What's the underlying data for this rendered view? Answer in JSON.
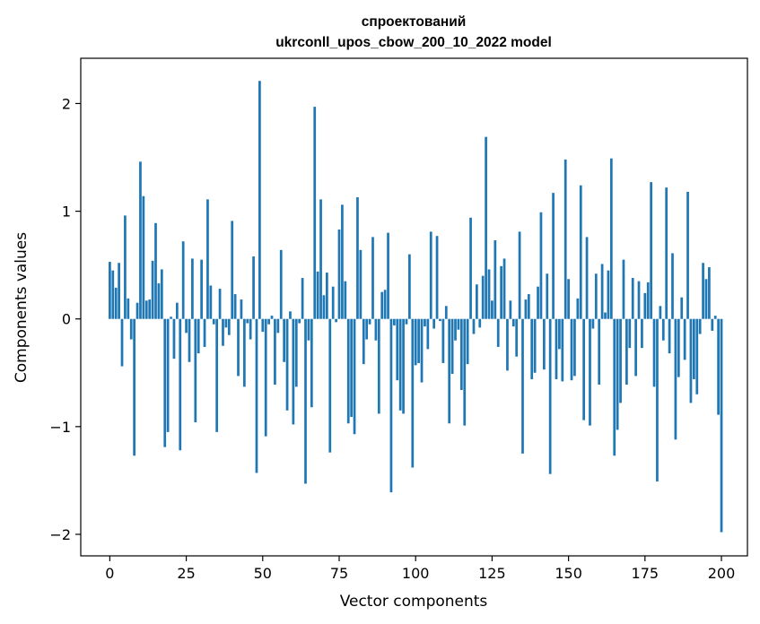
{
  "chart_data": {
    "type": "bar",
    "title_line1": "спроектований",
    "title_line2": "ukrconll_upos_cbow_200_10_2022 model",
    "xlabel": "Vector components",
    "ylabel": "Components values",
    "xlim": [
      -9.5,
      208.5
    ],
    "ylim": [
      -2.2,
      2.42
    ],
    "xticks": [
      0,
      25,
      50,
      75,
      100,
      125,
      150,
      175,
      200
    ],
    "xtick_labels": [
      "0",
      "25",
      "50",
      "75",
      "100",
      "125",
      "150",
      "175",
      "200"
    ],
    "yticks": [
      2,
      1,
      0,
      -1,
      -2
    ],
    "ytick_labels": [
      "2",
      "1",
      "0",
      "−1",
      "−2"
    ],
    "color": "#1f77b4",
    "values": [
      0.53,
      0.45,
      0.29,
      0.52,
      -0.44,
      0.96,
      0.19,
      -0.19,
      -1.27,
      0.15,
      1.46,
      1.14,
      0.17,
      0.18,
      0.54,
      0.89,
      0.33,
      0.46,
      -1.19,
      -1.05,
      0.02,
      -0.37,
      0.15,
      -1.22,
      0.72,
      -0.13,
      -0.4,
      0.56,
      -0.96,
      -0.32,
      0.55,
      -0.26,
      1.11,
      0.31,
      -0.05,
      -1.05,
      0.28,
      -0.25,
      -0.08,
      -0.15,
      0.91,
      0.23,
      -0.53,
      0.18,
      -0.63,
      -0.04,
      -0.19,
      0.58,
      -1.43,
      2.21,
      -0.12,
      -1.09,
      -0.05,
      0.03,
      -0.61,
      -0.13,
      0.64,
      -0.4,
      -0.85,
      0.07,
      -0.98,
      -0.63,
      -0.04,
      0.38,
      -1.53,
      -0.2,
      -0.82,
      1.97,
      0.44,
      1.11,
      0.22,
      0.43,
      -1.24,
      0.3,
      -0.03,
      0.83,
      1.06,
      0.35,
      -0.97,
      -0.91,
      -1.07,
      1.13,
      0.64,
      -0.42,
      -0.19,
      -0.05,
      0.76,
      -0.2,
      -0.88,
      0.25,
      0.27,
      0.8,
      -1.61,
      -0.06,
      -0.57,
      -0.85,
      -0.88,
      -0.05,
      0.6,
      -1.38,
      -0.43,
      -0.41,
      -0.59,
      -0.07,
      -0.28,
      0.81,
      -0.09,
      0.77,
      -0.02,
      -0.41,
      0.12,
      -0.97,
      -0.51,
      -0.2,
      -0.1,
      -0.66,
      -0.99,
      -0.42,
      0.94,
      -0.14,
      0.32,
      -0.08,
      0.4,
      1.69,
      0.46,
      0.17,
      0.73,
      -0.26,
      0.49,
      0.56,
      -0.48,
      0.17,
      -0.07,
      -0.35,
      0.81,
      -1.25,
      0.18,
      0.23,
      -0.56,
      -0.5,
      0.3,
      0.99,
      -0.47,
      0.42,
      -1.44,
      1.17,
      -0.56,
      -0.28,
      -0.58,
      1.48,
      0.37,
      -0.57,
      -0.53,
      0.19,
      1.24,
      -0.94,
      0.76,
      -0.99,
      -0.09,
      0.42,
      -0.61,
      0.51,
      0.06,
      0.45,
      1.49,
      -1.27,
      -1.03,
      -0.78,
      0.55,
      -0.61,
      -0.27,
      0.38,
      -0.53,
      0.35,
      -0.27,
      0.24,
      0.34,
      1.27,
      -0.63,
      -1.51,
      0.12,
      -0.2,
      1.22,
      -0.32,
      0.61,
      -1.12,
      -0.54,
      0.2,
      -0.38,
      1.18,
      -0.78,
      -0.56,
      -0.7,
      -0.14,
      0.52,
      0.37,
      0.48,
      -0.11,
      0.03,
      -0.89,
      -1.98
    ]
  }
}
